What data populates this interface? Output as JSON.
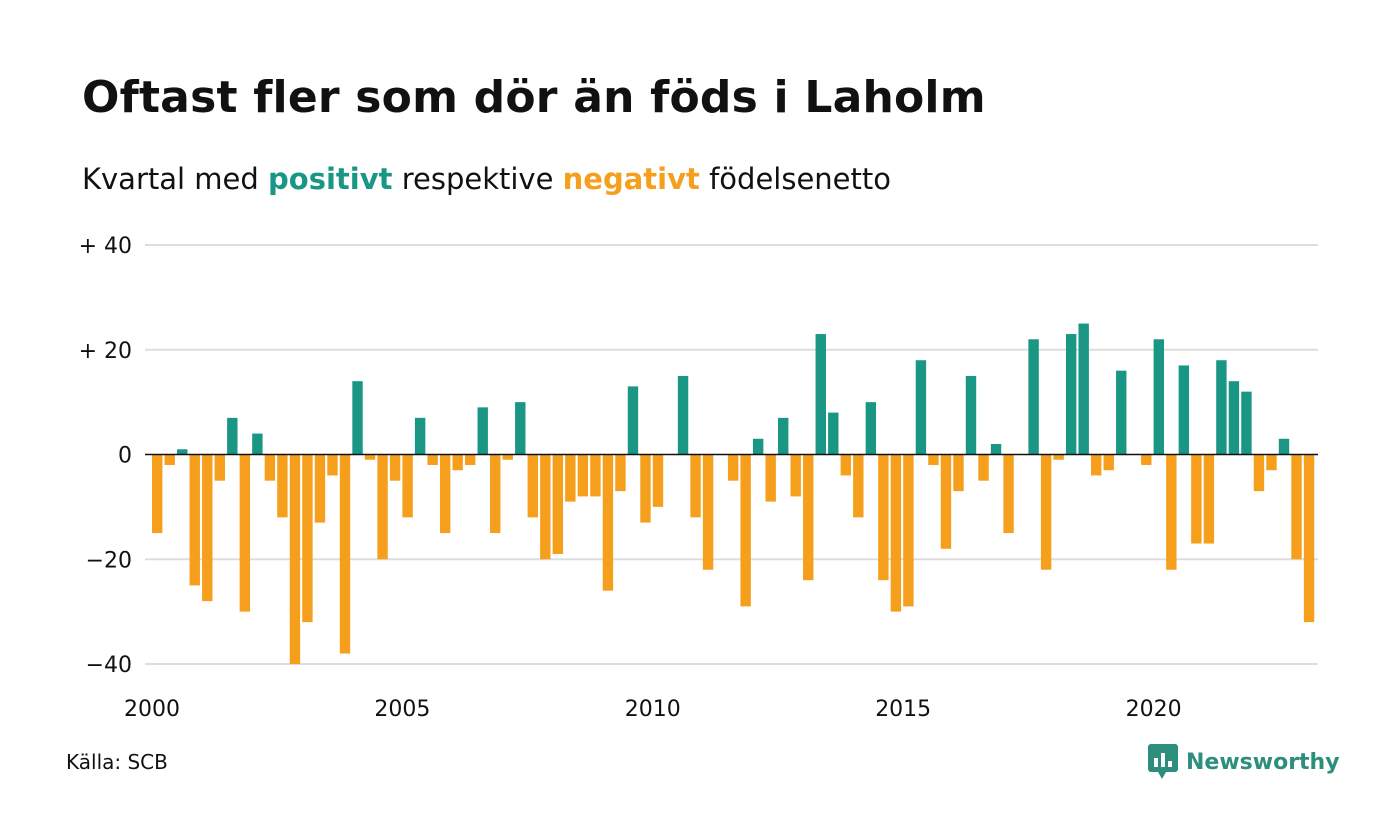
{
  "title": "Oftast fler som dör än föds i Laholm",
  "subtitle": {
    "prefix": "Kvartal med ",
    "positive_word": "positivt",
    "middle": " respektive ",
    "negative_word": "negativt",
    "suffix": " födelsenetto"
  },
  "source": "Källa: SCB",
  "brand": {
    "name": "Newsworthy",
    "icon": "newsworthy-logo-icon"
  },
  "colors": {
    "positive": "#1a9685",
    "negative": "#f59f1d",
    "grid": "#dddddd",
    "brand": "#2e8e7e"
  },
  "chart_data": {
    "type": "bar",
    "title": "Oftast fler som dör än föds i Laholm",
    "xlabel": "",
    "ylabel": "",
    "ylim": [
      -40,
      40
    ],
    "yticks": [
      {
        "value": 40,
        "label": "+ 40"
      },
      {
        "value": 20,
        "label": "+ 20"
      },
      {
        "value": 0,
        "label": "0"
      },
      {
        "value": -20,
        "label": "−20"
      },
      {
        "value": -40,
        "label": "−40"
      }
    ],
    "xticks": [
      "2000",
      "2005",
      "2010",
      "2015",
      "2020"
    ],
    "start_year": 2000,
    "grid": true,
    "legend": "none",
    "values": [
      -15,
      -2,
      1,
      -25,
      -28,
      -5,
      7,
      -30,
      4,
      -5,
      -12,
      -40,
      -32,
      -13,
      -4,
      -38,
      14,
      -1,
      -20,
      -5,
      -12,
      7,
      -2,
      -15,
      -3,
      -2,
      9,
      -15,
      -1,
      10,
      -12,
      -20,
      -19,
      -9,
      -8,
      -8,
      -26,
      -7,
      13,
      -13,
      -10,
      0,
      15,
      -12,
      -22,
      0,
      -5,
      -29,
      3,
      -9,
      7,
      -8,
      -24,
      23,
      8,
      -4,
      -12,
      10,
      -24,
      -30,
      -29,
      18,
      -2,
      -18,
      -7,
      15,
      -5,
      2,
      -15,
      0,
      22,
      -22,
      -1,
      23,
      25,
      -4,
      -3,
      16,
      0,
      -2,
      22,
      -22,
      17,
      -17,
      -17,
      18,
      14,
      12,
      -7,
      -3,
      3,
      -20,
      -32
    ]
  }
}
